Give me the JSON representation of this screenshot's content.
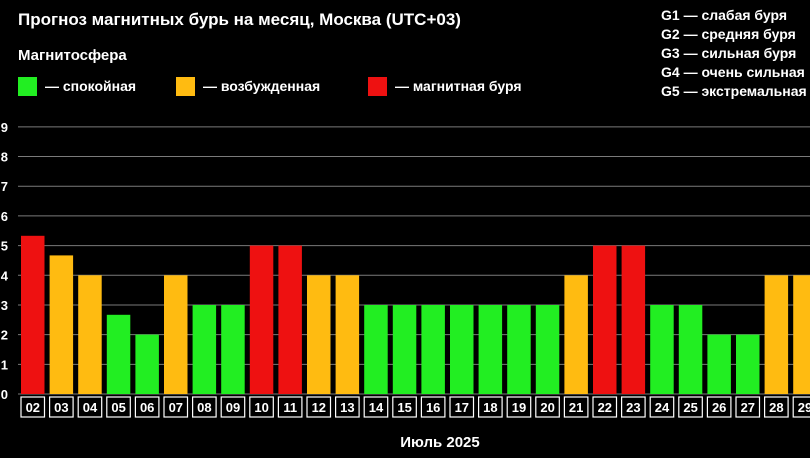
{
  "header": {
    "title": "Прогноз магнитных бурь на месяц, Москва (UTC+03)",
    "subtitle": "Магнитосфера"
  },
  "legend": [
    {
      "label": "— спокойная",
      "color": "#22ee22"
    },
    {
      "label": "— возбужденная",
      "color": "#ffbb11"
    },
    {
      "label": "— магнитная буря",
      "color": "#ee1111"
    }
  ],
  "g_scale": [
    {
      "code": "G1",
      "label": "G1 — слабая буря"
    },
    {
      "code": "G2",
      "label": "G2 — средняя буря"
    },
    {
      "code": "G3",
      "label": "G3 — сильная буря"
    },
    {
      "code": "G4",
      "label": "G4 — очень сильная"
    },
    {
      "code": "G5",
      "label": "G5 — экстремальная"
    }
  ],
  "chart_data": {
    "type": "bar",
    "xlabel": "Июль 2025",
    "ylabel": "",
    "ylim": [
      0,
      9
    ],
    "y_ticks": [
      "0",
      "1",
      "2",
      "3",
      "4",
      "5",
      "6",
      "7",
      "8",
      "9"
    ],
    "grid": true,
    "categories": [
      "02",
      "03",
      "04",
      "05",
      "06",
      "07",
      "08",
      "09",
      "10",
      "11",
      "12",
      "13",
      "14",
      "15",
      "16",
      "17",
      "18",
      "19",
      "20",
      "21",
      "22",
      "23",
      "24",
      "25",
      "26",
      "27",
      "28",
      "29"
    ],
    "values": [
      5.33,
      4.67,
      4,
      2.67,
      2,
      4,
      3,
      3,
      5,
      5,
      4,
      4,
      3,
      3,
      3,
      3,
      3,
      3,
      3,
      4,
      5,
      5,
      3,
      3,
      2,
      2,
      4,
      4
    ],
    "states": [
      "storm",
      "excited",
      "excited",
      "calm",
      "calm",
      "excited",
      "calm",
      "calm",
      "storm",
      "storm",
      "excited",
      "excited",
      "calm",
      "calm",
      "calm",
      "calm",
      "calm",
      "calm",
      "calm",
      "excited",
      "storm",
      "storm",
      "calm",
      "calm",
      "calm",
      "calm",
      "excited",
      "excited"
    ],
    "state_colors": {
      "calm": "#22ee22",
      "excited": "#ffbb11",
      "storm": "#ee1111"
    }
  }
}
